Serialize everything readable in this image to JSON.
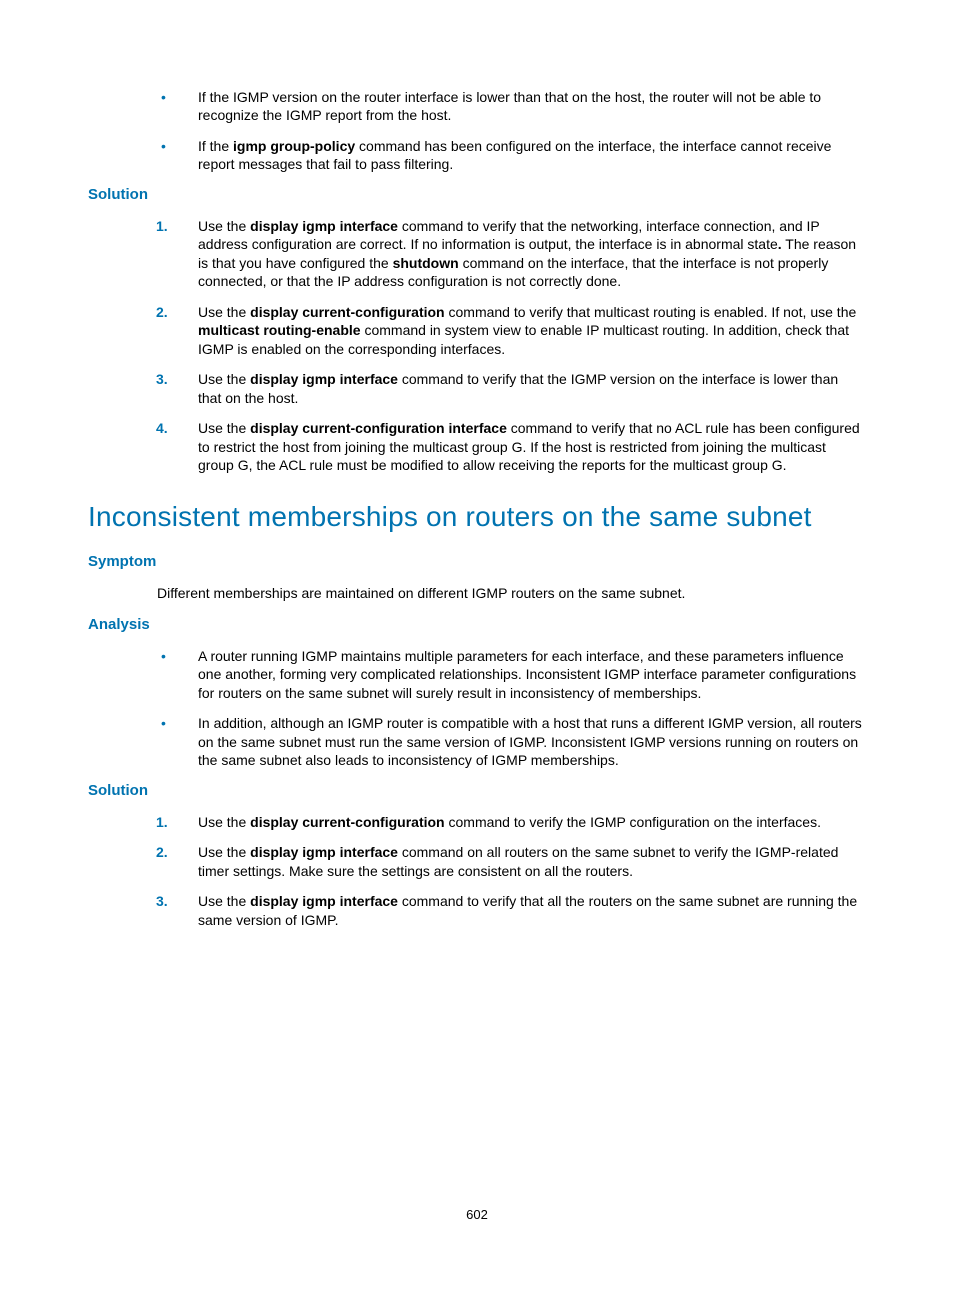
{
  "colors": {
    "accent": "#0073b0",
    "text": "#000000",
    "background": "#ffffff"
  },
  "typography": {
    "body_fontsize": 14,
    "section_heading_fontsize": 15,
    "big_heading_fontsize": 28,
    "page_num_fontsize": 13,
    "font_family": "Arial"
  },
  "top_bullets": [
    {
      "pre": "If the IGMP version on the router interface is lower than that on the host, the router will not be able to recognize the IGMP report from the host."
    },
    {
      "pre": "If the ",
      "bold1": "igmp group-policy",
      "post1": " command has been configured on the interface, the interface cannot receive report messages that fail to pass filtering."
    }
  ],
  "solution1_heading": "Solution",
  "solution1_items": [
    {
      "num": "1.",
      "pre": "Use the ",
      "bold1": "display igmp interface",
      "mid1": " command to verify that the networking, interface connection, and IP address configuration are correct. If no information is output, the interface is in abnormal state",
      "bold2": ".",
      "mid2": " The reason is that you have configured the ",
      "bold3": "shutdown",
      "post": " command on the interface, that the interface is not properly connected, or that the IP address configuration is not correctly done."
    },
    {
      "num": "2.",
      "pre": "Use the ",
      "bold1": "display current-configuration",
      "mid1": " command to verify that multicast routing is enabled. If not, use the ",
      "bold2": "multicast routing-enable",
      "post": " command in system view to enable IP multicast routing. In addition, check that IGMP is enabled on the corresponding interfaces."
    },
    {
      "num": "3.",
      "pre": "Use the ",
      "bold1": "display igmp interface",
      "post": " command to verify that the IGMP version on the interface is lower than that on the host."
    },
    {
      "num": "4.",
      "pre": "Use the ",
      "bold1": "display current-configuration interface",
      "post": " command to verify that no ACL rule has been configured to restrict the host from joining the multicast group G. If the host is restricted from joining the multicast group G, the ACL rule must be modified to allow receiving the reports for the multicast group G."
    }
  ],
  "big_heading": "Inconsistent memberships on routers on the same subnet",
  "symptom_heading": "Symptom",
  "symptom_text": "Different memberships are maintained on different IGMP routers on the same subnet.",
  "analysis_heading": "Analysis",
  "analysis_items": [
    "A router running IGMP maintains multiple parameters for each interface, and these parameters influence one another, forming very complicated relationships. Inconsistent IGMP interface parameter configurations for routers on the same subnet will surely result in inconsistency of memberships.",
    "In addition, although an IGMP router is compatible with a host that runs a different IGMP version, all routers on the same subnet must run the same version of IGMP. Inconsistent IGMP versions running on routers on the same subnet also leads to inconsistency of IGMP memberships."
  ],
  "solution2_heading": "Solution",
  "solution2_items": [
    {
      "num": "1.",
      "pre": "Use the ",
      "bold1": "display current-configuration",
      "post": " command to verify the IGMP configuration on the interfaces."
    },
    {
      "num": "2.",
      "pre": "Use the ",
      "bold1": "display igmp interface",
      "post": " command on all routers on the same subnet to verify the IGMP-related timer settings. Make sure the settings are consistent on all the routers."
    },
    {
      "num": "3.",
      "pre": "Use the ",
      "bold1": "display igmp interface",
      "post": " command to verify that all the routers on the same subnet are running the same version of IGMP."
    }
  ],
  "page_number": "602"
}
